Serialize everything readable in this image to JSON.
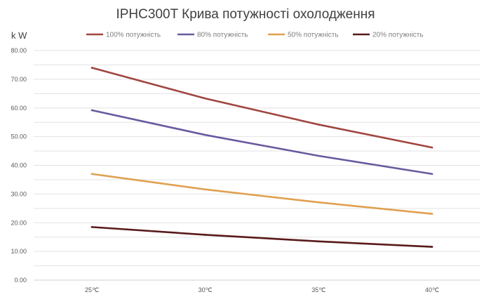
{
  "chart_data": {
    "type": "line",
    "title": "IPHC300T  Крива потужності охолодження",
    "ylabel": "k W",
    "xlabel": "",
    "categories": [
      "25℃",
      "30℃",
      "35℃",
      "40℃"
    ],
    "ylim": [
      0,
      80
    ],
    "ytick_step": 10,
    "ytick_labels": [
      "0.00",
      "10.00",
      "20.00",
      "30.00",
      "40.00",
      "50.00",
      "60.00",
      "70.00",
      "80.00"
    ],
    "grid": true,
    "legend_position": "top",
    "series": [
      {
        "name": "100% потужність",
        "color": "#a0453f",
        "values": [
          74.0,
          63.3,
          54.2,
          46.2
        ]
      },
      {
        "name": "80% потужність",
        "color": "#6a5a9f",
        "values": [
          59.2,
          50.6,
          43.3,
          37.0
        ]
      },
      {
        "name": "50% потужність",
        "color": "#e0a050",
        "values": [
          37.0,
          31.6,
          27.1,
          23.1
        ]
      },
      {
        "name": "20% потужність",
        "color": "#5a1a1a",
        "values": [
          18.5,
          15.8,
          13.5,
          11.6
        ]
      }
    ]
  }
}
